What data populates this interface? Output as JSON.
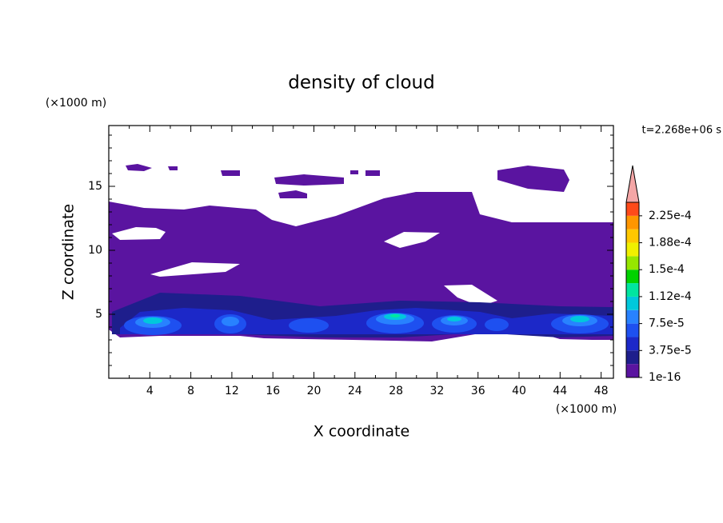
{
  "chart_data": {
    "type": "contour",
    "title": "density of cloud",
    "x_label": "X coordinate",
    "y_label": "Z coordinate",
    "x_unit": "(×1000 m)",
    "y_unit": "(×1000 m)",
    "time_label": "t=2.268e+06 s",
    "xlim": [
      0,
      49.2
    ],
    "ylim": [
      0,
      19.75
    ],
    "xticks": [
      4,
      8,
      12,
      16,
      20,
      24,
      28,
      32,
      36,
      40,
      44,
      48
    ],
    "xminorticks": [
      2,
      6,
      10,
      14,
      18,
      22,
      26,
      30,
      34,
      38,
      42,
      46
    ],
    "yticks": [
      5,
      10,
      15
    ],
    "yminorticks": [
      1,
      2,
      3,
      4,
      6,
      7,
      8,
      9,
      11,
      12,
      13,
      14,
      16,
      17,
      18,
      19
    ],
    "colorbar": {
      "clim": [
        1e-16,
        0.00024375
      ],
      "levels": [
        1e-16,
        1.875e-05,
        3.75e-05,
        5.625e-05,
        7.5e-05,
        9.375e-05,
        0.0001125,
        0.00013125,
        0.00015,
        0.00016875,
        0.0001875,
        0.00020625,
        0.000225
      ],
      "colors": [
        "#5a14a0",
        "#1e1e8c",
        "#1c28c8",
        "#1e50f0",
        "#2882ff",
        "#00c8dc",
        "#00e6a0",
        "#00d200",
        "#96e600",
        "#f0f000",
        "#ffc800",
        "#ff9600",
        "#ff4a1a"
      ],
      "extend_color": "#f4a6a6",
      "ticks": [
        {
          "value": 1e-16,
          "label": "1e-16"
        },
        {
          "value": 3.75e-05,
          "label": "3.75e-5"
        },
        {
          "value": 7.5e-05,
          "label": "7.5e-5"
        },
        {
          "value": 0.0001125,
          "label": "1.12e-4"
        },
        {
          "value": 0.00015,
          "label": "1.5e-4"
        },
        {
          "value": 0.0001875,
          "label": "1.88e-4"
        },
        {
          "value": 0.000225,
          "label": "2.25e-4"
        }
      ]
    }
  }
}
